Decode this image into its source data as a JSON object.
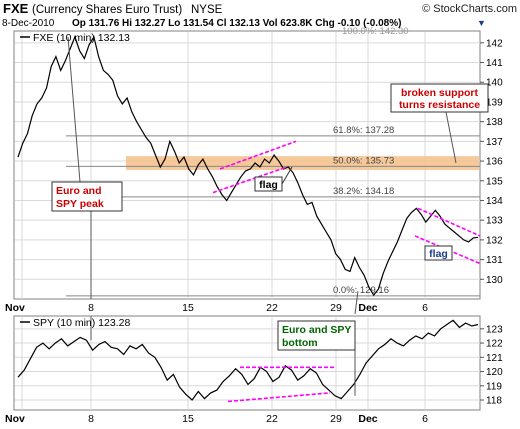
{
  "header": {
    "symbol": "FXE",
    "name": "(Currency Shares Euro Trust)",
    "exchange": "NYSE",
    "watermark": "© StockCharts.com",
    "date": "8-Dec-2010",
    "quote": "Op 131.76  Hi 132.27  Lo 131.54  Cl 132.13  Vol 623.8K  Chg -0.10 (-0.08%)",
    "chg_arrow": "▼"
  },
  "colors": {
    "price_line": "#000000",
    "flag_lines": "#ff00ff",
    "support_band": "#f5c08a",
    "retracement_lines": "#888888",
    "callout_text": "#cc0000",
    "callout_green": "#006600",
    "grid": "#d9d9d9",
    "frame": "#808080"
  },
  "chart_data": [
    {
      "type": "line",
      "title": "FXE (10 min) 132.13",
      "x_labels": [
        "Nov",
        "8",
        "15",
        "22",
        "29",
        "Dec",
        "6"
      ],
      "y_ticks": [
        130,
        131,
        132,
        133,
        134,
        135,
        136,
        137,
        138,
        139,
        140,
        141,
        142
      ],
      "ylim": [
        129.0,
        142.6
      ],
      "grid": true,
      "series": [
        {
          "values": [
            136.2,
            136.9,
            137.4,
            138.3,
            138.9,
            139.2,
            139.7,
            140.8,
            141.3,
            140.6,
            141.1,
            141.7,
            142.3,
            141.6,
            141.2,
            141.9,
            142.3,
            141.3,
            140.6,
            140.4,
            140.1,
            139.3,
            138.9,
            139.2,
            138.5,
            138.0,
            137.6,
            137.2,
            136.9,
            136.3,
            135.7,
            136.1,
            137.0,
            136.5,
            135.9,
            136.2,
            135.6,
            135.3,
            135.8,
            136.1,
            135.6,
            135.2,
            134.7,
            134.3,
            134.0,
            134.4,
            134.8,
            135.2,
            135.5,
            135.6,
            135.9,
            135.7,
            136.1,
            135.9,
            136.3,
            136.0,
            135.6,
            135.7,
            135.4,
            134.9,
            134.3,
            133.8,
            133.9,
            133.2,
            132.8,
            132.4,
            132.0,
            131.3,
            131.0,
            130.5,
            130.4,
            131.1,
            130.6,
            130.2,
            129.6,
            129.2,
            129.5,
            130.3,
            130.9,
            131.4,
            131.9,
            132.5,
            133.1,
            133.4,
            133.6,
            133.3,
            132.9,
            133.2,
            133.5,
            133.2,
            132.8,
            132.6,
            132.4,
            132.2,
            132.0,
            131.9,
            132.1,
            132.13
          ]
        }
      ],
      "fib_levels": [
        {
          "label": "61.8%: 137.28",
          "value": 137.28
        },
        {
          "label": "50.0%: 135.73",
          "value": 135.73
        },
        {
          "label": "38.2%: 134.18",
          "value": 134.18
        },
        {
          "label": "0.0%: 129.16",
          "value": 129.16
        },
        {
          "label": "100.0%: 142.30",
          "value": 142.3
        }
      ],
      "support_band": [
        135.55,
        136.25
      ],
      "annotations": [
        {
          "text": "broken support turns resistance"
        },
        {
          "text": "flag"
        },
        {
          "text": "flag"
        },
        {
          "text": "Euro and SPY peak"
        }
      ]
    },
    {
      "type": "line",
      "title": "SPY (10 min) 123.28",
      "x_labels": [
        "Nov",
        "8",
        "15",
        "22",
        "29",
        "Dec",
        "6"
      ],
      "y_ticks": [
        118,
        119,
        120,
        121,
        122,
        123
      ],
      "ylim": [
        117.3,
        123.9
      ],
      "grid": true,
      "series": [
        {
          "values": [
            119.6,
            120.1,
            120.9,
            121.7,
            122.0,
            121.6,
            122.0,
            122.3,
            121.8,
            122.1,
            122.4,
            122.2,
            121.5,
            121.9,
            122.1,
            121.7,
            121.6,
            121.2,
            121.8,
            121.6,
            121.9,
            121.3,
            121.0,
            120.3,
            119.4,
            119.8,
            118.9,
            118.4,
            118.0,
            118.6,
            118.1,
            118.5,
            118.7,
            119.3,
            119.7,
            120.2,
            119.8,
            119.1,
            119.5,
            120.3,
            120.0,
            119.3,
            119.6,
            120.4,
            120.1,
            119.4,
            119.7,
            120.2,
            119.9,
            119.1,
            118.7,
            118.3,
            118.1,
            118.6,
            119.1,
            119.8,
            120.6,
            121.1,
            121.6,
            121.9,
            122.3,
            122.0,
            121.8,
            122.2,
            122.5,
            122.3,
            122.7,
            122.5,
            123.0,
            123.3,
            123.6,
            123.1,
            123.4,
            123.2,
            123.3
          ]
        }
      ],
      "annotations": [
        {
          "text": "Euro and SPY bottom"
        }
      ]
    }
  ]
}
